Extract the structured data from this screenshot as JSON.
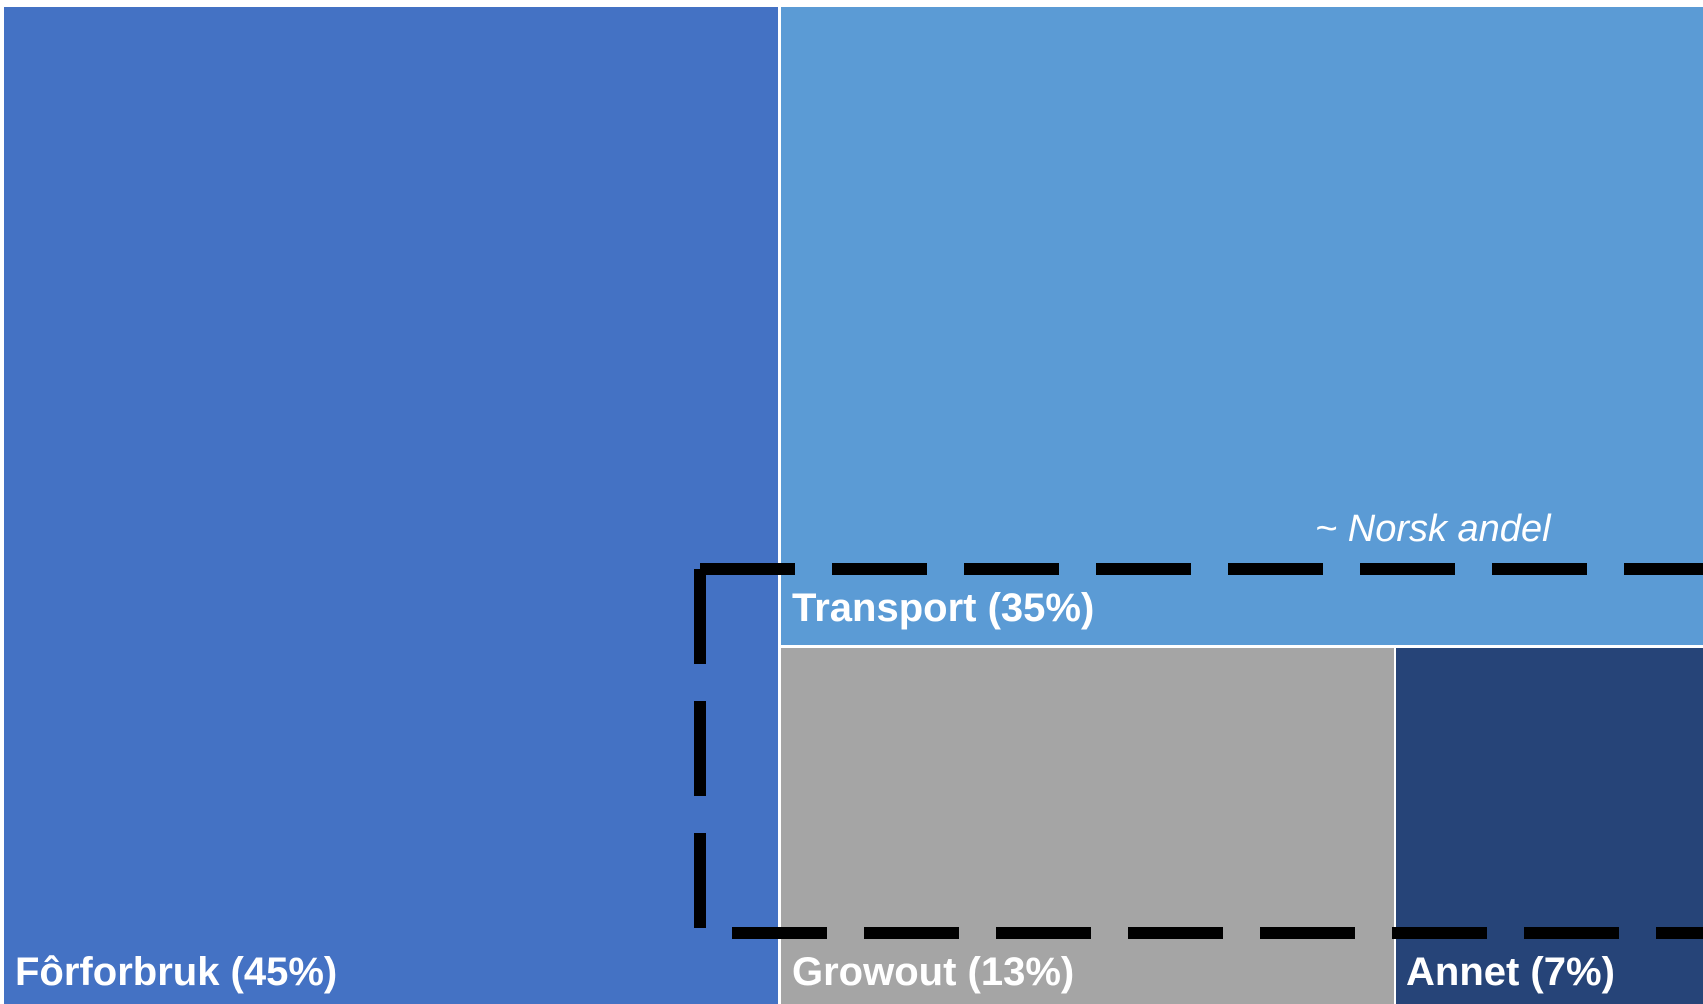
{
  "chart_data": {
    "type": "treemap",
    "title": "",
    "tiles": [
      {
        "name": "Fôrforbruk",
        "value": 45,
        "label": "Fôrforbruk (45%)",
        "color": "#4472c4"
      },
      {
        "name": "Transport",
        "value": 35,
        "label": "Transport (35%)",
        "color": "#5b9bd5"
      },
      {
        "name": "Growout",
        "value": 13,
        "label": "Growout (13%)",
        "color": "#a5a5a5"
      },
      {
        "name": "Annet",
        "value": 7,
        "label": "Annet (7%)",
        "color": "#264478"
      }
    ],
    "annotation": {
      "text": "~ Norsk andel",
      "style": "dashed-outline",
      "covers": [
        "Transport",
        "Growout",
        "Annet"
      ],
      "color": "#000000"
    },
    "separator_color": "#ffffff"
  }
}
